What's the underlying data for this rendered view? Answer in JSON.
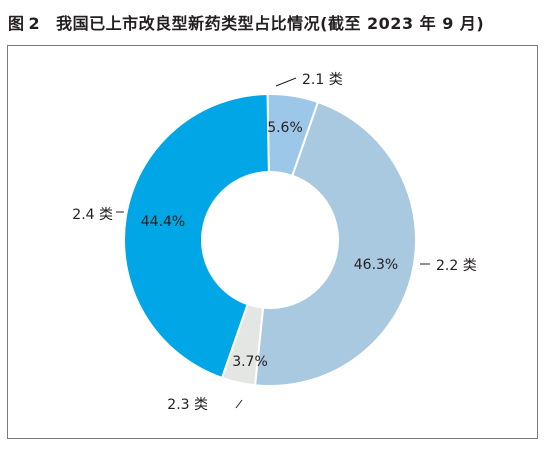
{
  "title": {
    "prefix": "图",
    "number": "2",
    "text": "我国已上市改良型新药类型占比情况(截至 2023 年 9 月)"
  },
  "chart_data": {
    "type": "pie",
    "donut": true,
    "slices": [
      {
        "label": "2.1 类",
        "value": 5.6,
        "value_label": "5.6%",
        "color": "#9dc7e8"
      },
      {
        "label": "2.2 类",
        "value": 46.3,
        "value_label": "46.3%",
        "color": "#a9c9e0"
      },
      {
        "label": "2.3 类",
        "value": 3.7,
        "value_label": "3.7%",
        "color": "#e4e6e3"
      },
      {
        "label": "2.4 类",
        "value": 44.4,
        "value_label": "44.4%",
        "color": "#00a6e6"
      }
    ]
  }
}
